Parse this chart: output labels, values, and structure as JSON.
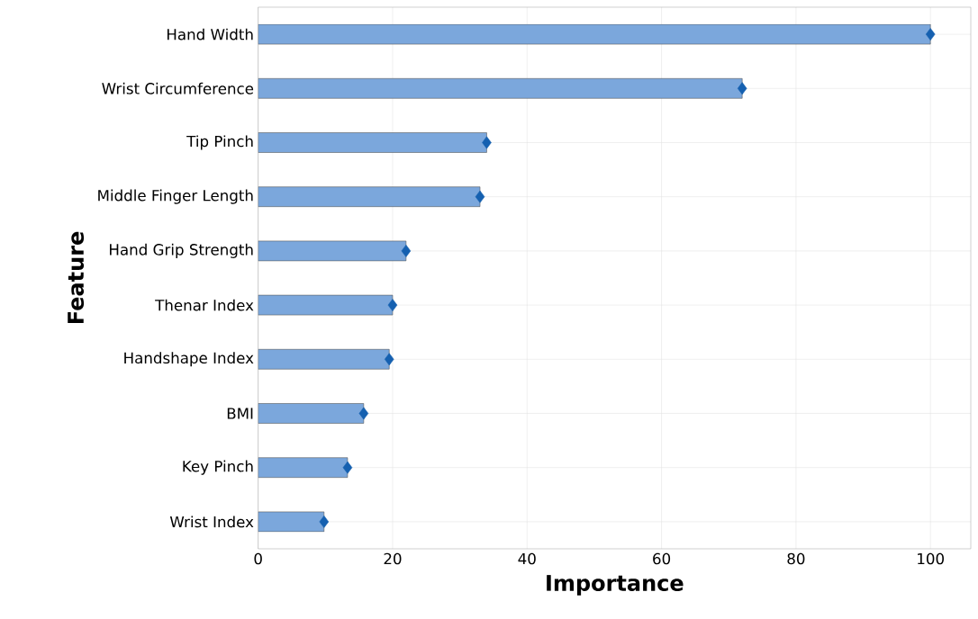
{
  "chart_data": {
    "type": "bar",
    "orientation": "horizontal",
    "xlabel": "Importance",
    "ylabel": "Feature",
    "categories": [
      "Hand Width",
      "Wrist Circumference",
      "Tip Pinch",
      "Middle Finger Length",
      "Hand Grip Strength",
      "Thenar Index",
      "Handshape Index",
      "BMI",
      "Key Pinch",
      "Wrist Index"
    ],
    "series": [
      {
        "color": "#7ba7dc",
        "values": [
          100,
          72,
          34,
          33,
          22,
          20,
          19.5,
          15.7,
          13.3,
          9.8
        ]
      },
      {
        "type": "scatter",
        "color": "#1560b0",
        "marker": "diamond",
        "values": [
          100,
          72,
          34,
          33,
          22,
          20,
          19.5,
          15.7,
          13.3,
          9.8
        ]
      }
    ],
    "xlim": [
      0,
      106
    ],
    "xticks": [
      0,
      20,
      40,
      60,
      80,
      100
    ],
    "grid": true
  }
}
